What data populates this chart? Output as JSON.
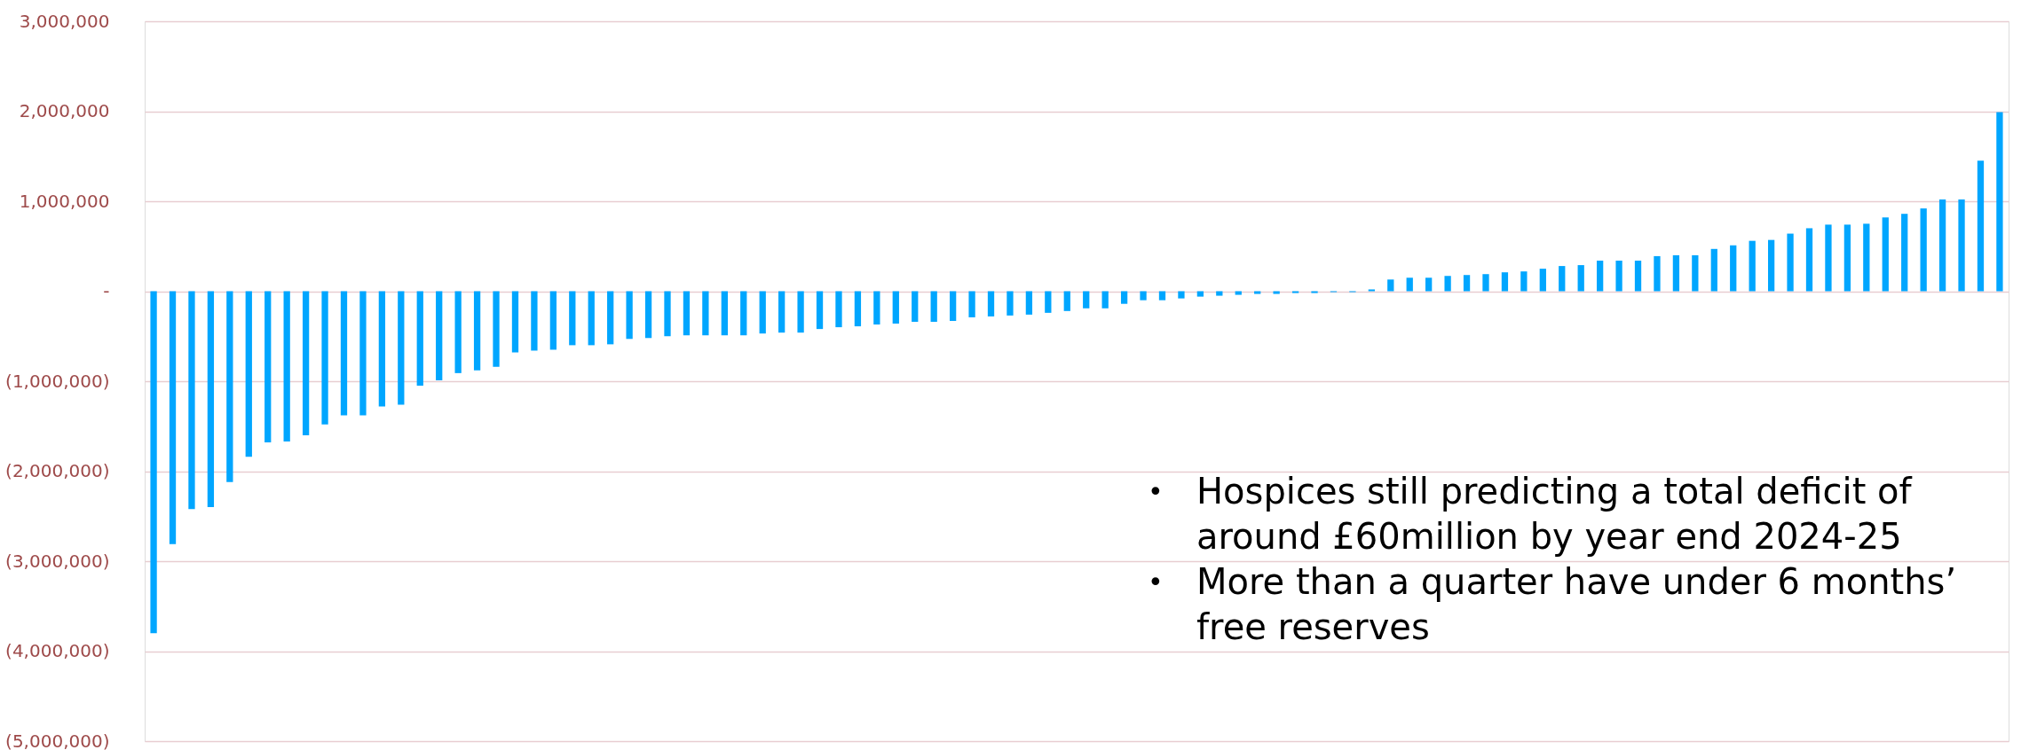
{
  "chart_data": {
    "type": "bar",
    "color": "#00a6ff",
    "categories": [
      null,
      null,
      null,
      null,
      null,
      null,
      null,
      null,
      null,
      null,
      null,
      null,
      null,
      null,
      null,
      null,
      null,
      null,
      null,
      null,
      null,
      null,
      null,
      null,
      null,
      null,
      null,
      null,
      null,
      null,
      null,
      null,
      null,
      null,
      null,
      null,
      null,
      null,
      null,
      null,
      null,
      null,
      null,
      null,
      null,
      null,
      null,
      null,
      null,
      null,
      null,
      null,
      null,
      null,
      null,
      null,
      null,
      null,
      null,
      null,
      null,
      null,
      null,
      null,
      null,
      null,
      null,
      null,
      null,
      null,
      null,
      null,
      null,
      null,
      null,
      null,
      null,
      null,
      null,
      null,
      null,
      null,
      null,
      null,
      null,
      null,
      null,
      null,
      null,
      null,
      null,
      null,
      null,
      null,
      null,
      null,
      null,
      null
    ],
    "values": [
      -3800000,
      -2810000,
      -2420000,
      -2400000,
      -2120000,
      -1840000,
      -1680000,
      -1670000,
      -1600000,
      -1480000,
      -1380000,
      -1380000,
      -1280000,
      -1260000,
      -1050000,
      -990000,
      -910000,
      -880000,
      -840000,
      -680000,
      -660000,
      -650000,
      -600000,
      -600000,
      -590000,
      -530000,
      -520000,
      -500000,
      -490000,
      -490000,
      -490000,
      -490000,
      -470000,
      -460000,
      -460000,
      -420000,
      -400000,
      -390000,
      -370000,
      -360000,
      -340000,
      -340000,
      -330000,
      -290000,
      -280000,
      -270000,
      -260000,
      -240000,
      -220000,
      -190000,
      -190000,
      -140000,
      -100000,
      -100000,
      -80000,
      -60000,
      -50000,
      -40000,
      -30000,
      -30000,
      -20000,
      -20000,
      -10000,
      -10000,
      20000,
      130000,
      150000,
      150000,
      170000,
      180000,
      190000,
      210000,
      220000,
      250000,
      280000,
      290000,
      340000,
      340000,
      340000,
      390000,
      400000,
      400000,
      470000,
      510000,
      560000,
      570000,
      640000,
      700000,
      740000,
      740000,
      750000,
      820000,
      860000,
      920000,
      1020000,
      1020000,
      1450000,
      1990000
    ],
    "ylim": [
      -5000000,
      3000000
    ],
    "yticks": [
      {
        "value": -5000000,
        "label": "(5,000,000)"
      },
      {
        "value": -4000000,
        "label": "(4,000,000)"
      },
      {
        "value": -3000000,
        "label": "(3,000,000)"
      },
      {
        "value": -2000000,
        "label": "(2,000,000)"
      },
      {
        "value": -1000000,
        "label": "(1,000,000)"
      },
      {
        "value": 0,
        "label": "-"
      },
      {
        "value": 1000000,
        "label": "1,000,000"
      },
      {
        "value": 2000000,
        "label": "2,000,000"
      },
      {
        "value": 3000000,
        "label": "3,000,000"
      }
    ],
    "grid": "y",
    "annotations": [
      "• Hospices still predicting a total deficit of around £60million by year end 2024-25",
      "• More than a quarter have under 6 months’ free reserves"
    ]
  }
}
